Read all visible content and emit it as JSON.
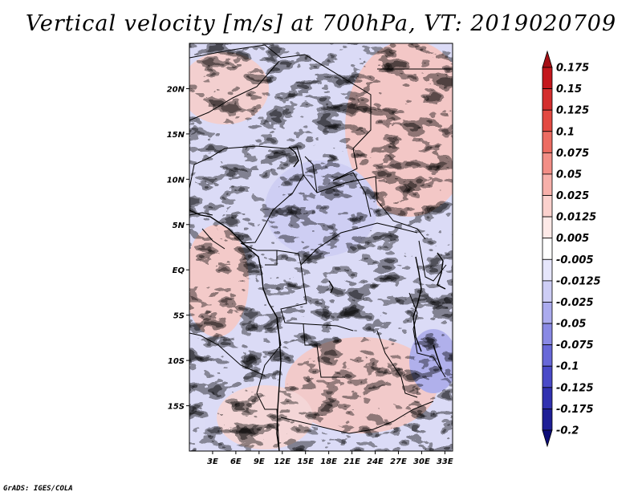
{
  "title": "Vertical velocity [m/s] at 700hPa, VT: 2019020709",
  "credit": "GrADS: IGES/COLA",
  "map": {
    "lat_labels": [
      "20N",
      "15N",
      "10N",
      "5N",
      "EQ",
      "5S",
      "10S",
      "15S"
    ],
    "lat_values": [
      20,
      15,
      10,
      5,
      0,
      -5,
      -10,
      -15
    ],
    "lon_labels": [
      "3E",
      "6E",
      "9E",
      "12E",
      "15E",
      "18E",
      "21E",
      "24E",
      "27E",
      "30E",
      "33E"
    ],
    "lon_values": [
      3,
      6,
      9,
      12,
      15,
      18,
      21,
      24,
      27,
      30,
      33
    ],
    "lon_range": [
      0,
      34
    ],
    "lat_range": [
      -20,
      25
    ]
  },
  "colorbar": {
    "labels": [
      "0.175",
      "0.15",
      "0.125",
      "0.1",
      "0.075",
      "0.05",
      "0.025",
      "0.0125",
      "0.005",
      "-0.005",
      "-0.0125",
      "-0.025",
      "-0.05",
      "-0.075",
      "-0.1",
      "-0.125",
      "-0.175",
      "-0.2"
    ],
    "colors": [
      "#a50f15",
      "#c4171c",
      "#d42e2d",
      "#e34a42",
      "#ec6c62",
      "#f28e86",
      "#f7b0aa",
      "#fbd1cd",
      "#fde9e7",
      "#ffffff",
      "#e6e6fb",
      "#cdcdf5",
      "#ababee",
      "#8989e4",
      "#6868d8",
      "#4a4ac8",
      "#3131b0",
      "#1e1e96",
      "#0d0d78"
    ]
  }
}
